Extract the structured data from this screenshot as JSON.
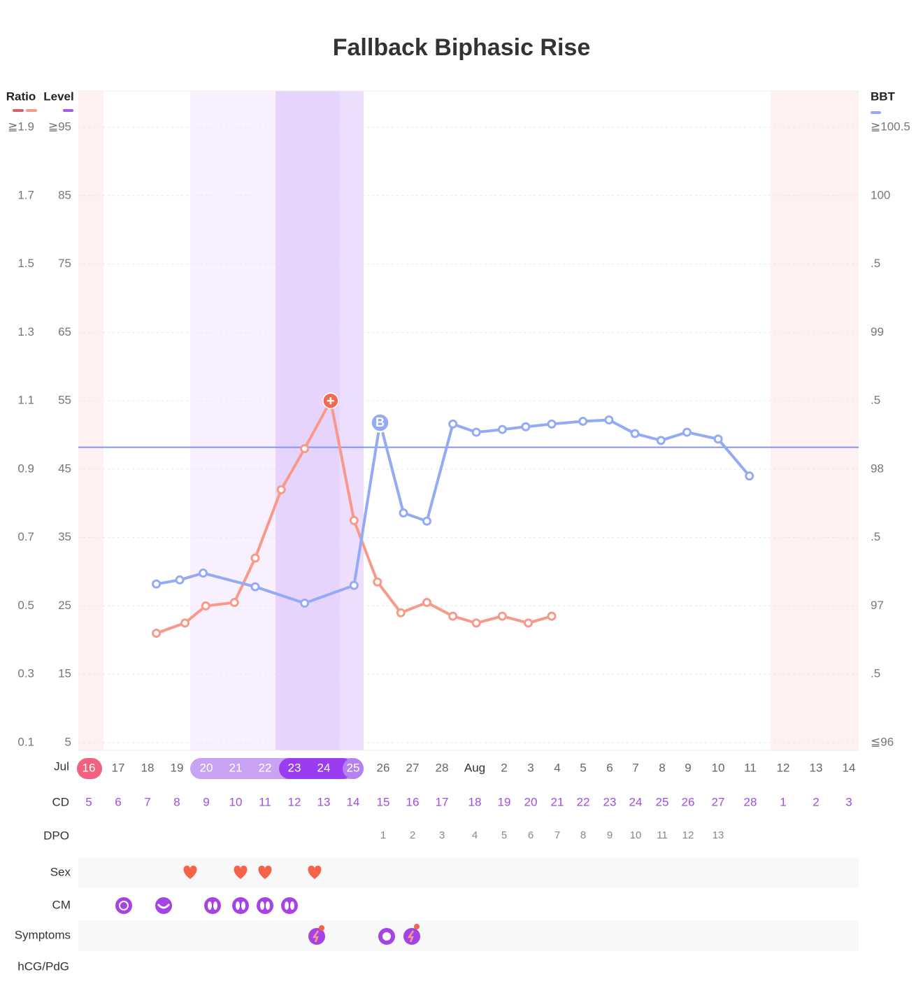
{
  "chart_data": {
    "type": "line",
    "title": "Fallback Biphasic Rise",
    "xlim": [
      0,
      30
    ],
    "ratio_axis": {
      "ylim": [
        0.1,
        1.9
      ],
      "yticks": [
        0.1,
        0.3,
        0.5,
        0.7,
        0.9,
        1.1,
        1.3,
        1.5,
        1.7,
        {
          "value": 1.9,
          "label": "≧1.9"
        }
      ]
    },
    "level_axis": {
      "name": "Level",
      "color": "#a25ce8",
      "ylim": [
        5,
        95
      ],
      "yticks": [
        5,
        15,
        25,
        35,
        45,
        55,
        65,
        75,
        85,
        {
          "value": 95,
          "label": "≧95"
        }
      ]
    },
    "y2lim": [
      96,
      100.5
    ],
    "y2ticks": [
      {
        "value": 96,
        "label": "≦96"
      },
      {
        "value": 96.5,
        "label": ".5"
      },
      97,
      {
        "value": 97.5,
        "label": ".5"
      },
      98,
      {
        "value": 98.5,
        "label": ".5"
      },
      99,
      {
        "value": 99.5,
        "label": ".5"
      },
      100,
      {
        "value": 100.5,
        "label": "≧100.5"
      }
    ],
    "series": [
      {
        "name": "Ratio",
        "color": "#f79a8a",
        "legend_colors": [
          "#d9606a",
          "#f79a8a"
        ],
        "x": [
          3.0,
          4.1,
          4.9,
          6.0,
          6.8,
          7.8,
          8.7,
          9.7,
          10.6,
          11.5,
          12.4,
          13.4,
          14.4,
          15.3,
          16.3,
          17.3,
          18.2
        ],
        "values": [
          0.42,
          0.45,
          0.5,
          0.51,
          0.64,
          0.84,
          0.96,
          1.1,
          0.75,
          0.57,
          0.48,
          0.51,
          0.47,
          0.45,
          0.47,
          0.45,
          0.47
        ]
      },
      {
        "name": "BBT",
        "color": "#94aaf5",
        "axis": "y2",
        "x": [
          3.0,
          3.9,
          4.8,
          6.8,
          8.7,
          10.6,
          11.6,
          12.5,
          13.4,
          14.4,
          15.3,
          16.3,
          17.2,
          18.2,
          19.4,
          20.4,
          21.4,
          22.4,
          23.4,
          24.6,
          25.8
        ],
        "values": [
          97.16,
          97.19,
          97.24,
          97.14,
          97.02,
          97.15,
          98.34,
          97.68,
          97.62,
          98.33,
          98.27,
          98.29,
          98.31,
          98.33,
          98.35,
          98.36,
          98.26,
          98.21,
          98.27,
          98.22,
          97.95
        ]
      }
    ],
    "coverline": 98.16,
    "coverline_color": "#8096f0",
    "bbt_marker_label": "B",
    "month": "Jul",
    "dates": [
      "16",
      "17",
      "18",
      "19",
      "20",
      "21",
      "22",
      "23",
      "24",
      "25",
      "26",
      "27",
      "28",
      "Aug",
      "2",
      "3",
      "4",
      "5",
      "6",
      "7",
      "8",
      "9",
      "10",
      "11",
      "12",
      "13",
      "14"
    ],
    "rows": {
      "cd": {
        "label": "CD",
        "values": [
          5,
          6,
          7,
          8,
          9,
          10,
          11,
          12,
          13,
          14,
          15,
          16,
          17,
          18,
          19,
          20,
          21,
          22,
          23,
          24,
          25,
          26,
          27,
          28,
          1,
          2,
          3
        ]
      },
      "dpo": {
        "label": "DPO",
        "values": [
          null,
          null,
          null,
          null,
          null,
          null,
          null,
          null,
          null,
          null,
          1,
          2,
          3,
          4,
          5,
          6,
          7,
          8,
          9,
          10,
          11,
          12,
          13,
          null,
          null,
          null,
          null
        ]
      },
      "sex": {
        "label": "Sex"
      },
      "cm": {
        "label": "CM"
      },
      "symptoms": {
        "label": "Symptoms"
      },
      "hcg": {
        "label": "hCG/PdG"
      }
    }
  }
}
